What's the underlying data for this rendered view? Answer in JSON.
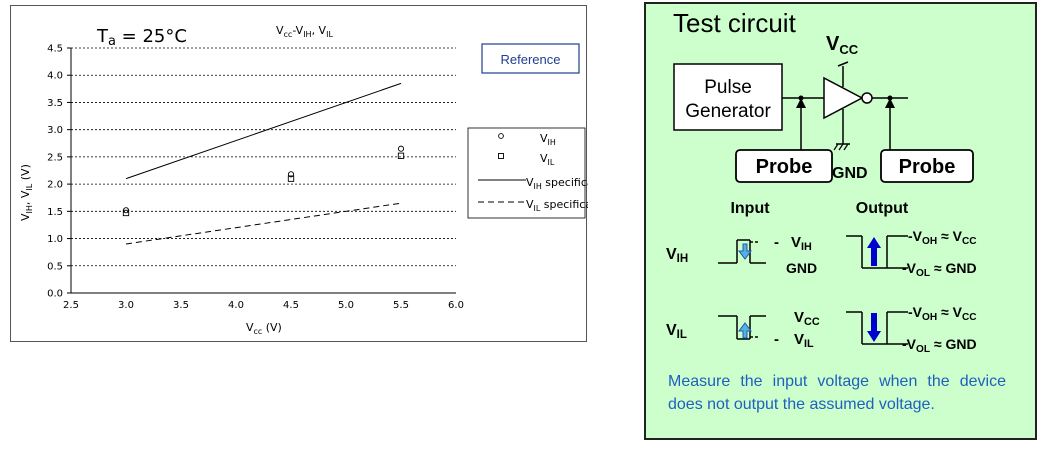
{
  "chart_data": {
    "type": "scatter",
    "title": "Vcc-VIH, VIL",
    "annotation": "Ta = 25°C",
    "reference_button": "Reference",
    "xlabel": "Vcc (V)",
    "ylabel": "VIH, VIL (V)",
    "xlim": [
      2.5,
      6.0
    ],
    "ylim": [
      0.0,
      4.5
    ],
    "x_ticks": [
      "2.5",
      "3.0",
      "3.5",
      "4.0",
      "4.5",
      "5.0",
      "5.5",
      "6.0"
    ],
    "y_ticks": [
      "0.0",
      "0.5",
      "1.0",
      "1.5",
      "2.0",
      "2.5",
      "3.0",
      "3.5",
      "4.0",
      "4.5"
    ],
    "grid": "horizontal dashed",
    "legend_placement": "right",
    "series": [
      {
        "name": "VIH",
        "marker": "circle",
        "points": [
          [
            3.0,
            1.52
          ],
          [
            4.5,
            2.18
          ],
          [
            5.5,
            2.65
          ]
        ]
      },
      {
        "name": "VIL",
        "marker": "square",
        "points": [
          [
            3.0,
            1.47
          ],
          [
            4.5,
            2.1
          ],
          [
            5.5,
            2.52
          ]
        ]
      },
      {
        "name": "VIH specification",
        "style": "solid",
        "points": [
          [
            3.0,
            2.1
          ],
          [
            5.5,
            3.85
          ]
        ]
      },
      {
        "name": "VIL specification",
        "style": "dashed",
        "points": [
          [
            3.0,
            0.9
          ],
          [
            5.5,
            1.65
          ]
        ]
      }
    ]
  },
  "circuit": {
    "title": "Test circuit",
    "vcc": "VCC",
    "pulse_generator": [
      "Pulse",
      "Generator"
    ],
    "probe": "Probe",
    "gnd": "GND",
    "input_header": "Input",
    "output_header": "Output",
    "rows": [
      {
        "label": "VIH",
        "input_top": "- VIH",
        "input_bottom": "GND",
        "output_top": "VOH ≈ VCC",
        "output_bottom": "VOL ≈ GND",
        "arrow": "up"
      },
      {
        "label": "VIL",
        "input_top": "VCC",
        "input_bottom": "- VIL",
        "output_top": "VOH ≈ VCC",
        "output_bottom": "VOL ≈ GND",
        "arrow": "down"
      }
    ],
    "note": "Measure the input voltage when the device does not output the assumed voltage.",
    "colors": {
      "panel": "#ccffcc",
      "note_text": "#1f5fbf",
      "input_arrow": "#5aaee6",
      "output_arrow": "#0000cc"
    }
  }
}
